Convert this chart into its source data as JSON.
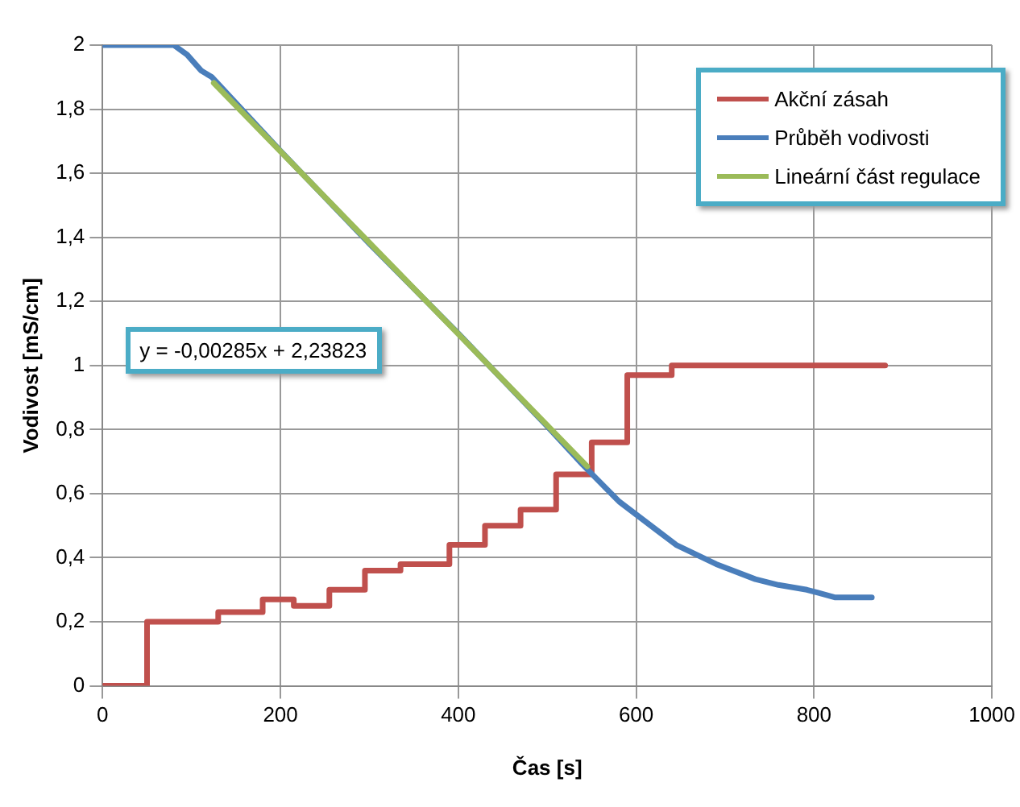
{
  "chart_data": {
    "type": "line",
    "xlabel": "Čas [s]",
    "ylabel": "Vodivost [mS/cm]",
    "xlim": [
      0,
      1000
    ],
    "xticks": [
      0,
      200,
      400,
      600,
      800,
      1000
    ],
    "ylim": [
      0,
      2
    ],
    "yticks": [
      0,
      {
        "value": 0.2,
        "label": "0,2"
      },
      {
        "value": 0.4,
        "label": "0,4"
      },
      {
        "value": 0.6,
        "label": "0,6"
      },
      {
        "value": 0.8,
        "label": "0,8"
      },
      1,
      {
        "value": 1.2,
        "label": "1,2"
      },
      {
        "value": 1.4,
        "label": "1,4"
      },
      {
        "value": 1.6,
        "label": "1,6"
      },
      {
        "value": 1.8,
        "label": "1,8"
      },
      2
    ],
    "grid": true,
    "legend": "top right",
    "marker": "none",
    "line_style": "solid",
    "annotations": [
      "y = -0,00285x + 2,23823"
    ],
    "series": [
      {
        "name": "Akční zásah",
        "color": "#c0504d",
        "type": "step",
        "x": [
          0,
          50,
          130,
          180,
          215,
          255,
          295,
          335,
          390,
          430,
          470,
          510,
          550,
          590,
          640,
          880
        ],
        "values": [
          0,
          0.2,
          0.23,
          0.27,
          0.25,
          0.3,
          0.36,
          0.38,
          0.44,
          0.5,
          0.55,
          0.66,
          0.76,
          0.97,
          1,
          1
        ]
      },
      {
        "name": "Průběh vodivosti",
        "color": "#4a7ebb",
        "x": [
          0,
          80,
          95,
          111,
          123,
          200,
          300,
          400,
          500,
          540,
          581,
          626,
          645,
          690,
          734,
          760,
          792,
          824,
          865
        ],
        "values": [
          2,
          2,
          1.97,
          1.92,
          1.9,
          1.67,
          1.38,
          1.1,
          0.81,
          0.69,
          0.575,
          0.48,
          0.44,
          0.38,
          0.333,
          0.315,
          0.3,
          0.276,
          0.276
        ]
      },
      {
        "name": "Lineární část regulace",
        "color": "#9bbb59",
        "x": [
          125,
          545
        ],
        "values": [
          1.882,
          0.685
        ]
      }
    ]
  }
}
